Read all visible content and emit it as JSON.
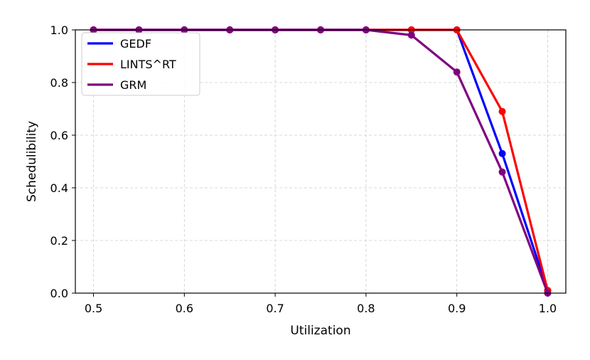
{
  "chart_data": {
    "type": "line",
    "title": "",
    "xlabel": "Utilization",
    "ylabel": "Schedulibility",
    "xlim": [
      0.48,
      1.02
    ],
    "ylim": [
      0.0,
      1.0
    ],
    "xticks": [
      "0.5",
      "0.6",
      "0.7",
      "0.8",
      "0.9",
      "1.0"
    ],
    "yticks": [
      "0.0",
      "0.2",
      "0.4",
      "0.6",
      "0.8",
      "1.0"
    ],
    "grid": true,
    "legend_position": "top-left",
    "x": [
      0.5,
      0.55,
      0.6,
      0.65,
      0.7,
      0.75,
      0.8,
      0.85,
      0.9,
      0.95,
      1.0
    ],
    "series": [
      {
        "name": "GEDF",
        "color": "#0000ff",
        "values": [
          1.0,
          1.0,
          1.0,
          1.0,
          1.0,
          1.0,
          1.0,
          1.0,
          1.0,
          0.53,
          0.01
        ]
      },
      {
        "name": "LINTS^RT",
        "color": "#ff0000",
        "values": [
          1.0,
          1.0,
          1.0,
          1.0,
          1.0,
          1.0,
          1.0,
          1.0,
          1.0,
          0.69,
          0.01
        ]
      },
      {
        "name": "GRM",
        "color": "#800080",
        "values": [
          1.0,
          1.0,
          1.0,
          1.0,
          1.0,
          1.0,
          1.0,
          0.98,
          0.84,
          0.46,
          0.0
        ]
      }
    ]
  }
}
